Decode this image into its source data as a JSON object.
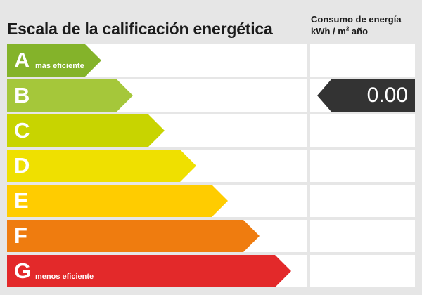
{
  "title": "Escala de la calificación energética",
  "consumption_header": {
    "line1": "Consumo de energía",
    "unit_prefix": "kWh / m",
    "unit_sup": "2",
    "unit_suffix": " año"
  },
  "ratings": [
    {
      "letter": "A",
      "note": "más eficiente",
      "color": "#84b32a"
    },
    {
      "letter": "B",
      "note": "",
      "color": "#a5c73a"
    },
    {
      "letter": "C",
      "note": "",
      "color": "#c8d400"
    },
    {
      "letter": "D",
      "note": "",
      "color": "#efe000"
    },
    {
      "letter": "E",
      "note": "",
      "color": "#ffcc00"
    },
    {
      "letter": "F",
      "note": "",
      "color": "#ef7c0f"
    },
    {
      "letter": "G",
      "note": "menos eficiente",
      "color": "#e3292a"
    }
  ],
  "current": {
    "rating": "B",
    "value": "0.00",
    "color": "#333333"
  }
}
